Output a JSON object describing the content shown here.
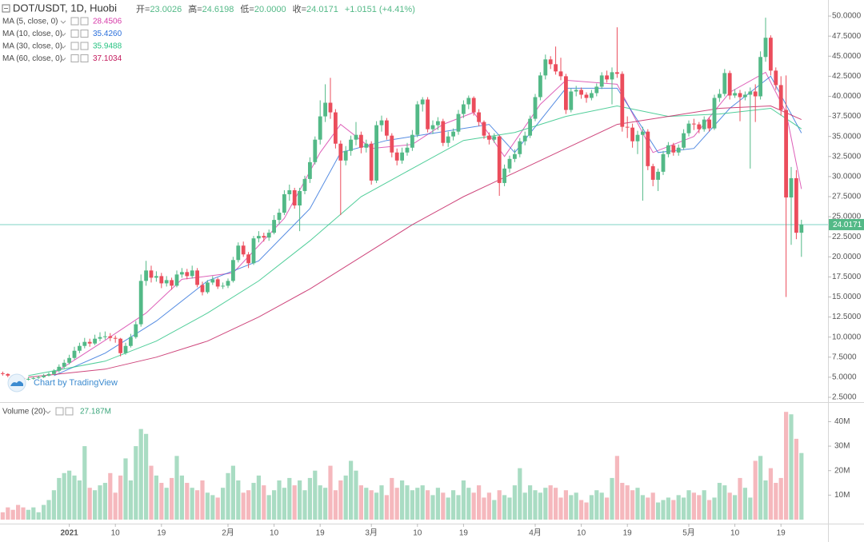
{
  "chart_data": {
    "type": "candlestick",
    "title": "DOT/USDT, 1D, Huobi",
    "header_values": [
      {
        "label": "开=",
        "value": "23.0026"
      },
      {
        "label": "高=",
        "value": "24.6198"
      },
      {
        "label": "低=",
        "value": "20.0000"
      },
      {
        "label": "收=",
        "value": "24.0171"
      },
      {
        "label": "",
        "value": "+1.0151 (+4.41%)"
      }
    ],
    "up_color": "#53b987",
    "down_color": "#eb4d5c",
    "ylim": [
      2,
      52
    ],
    "yticks": [
      {
        "value": 2.5,
        "label": "2.5000"
      },
      {
        "value": 5,
        "label": "5.0000"
      },
      {
        "value": 7.5,
        "label": "7.5000"
      },
      {
        "value": 10,
        "label": "10.0000"
      },
      {
        "value": 12.5,
        "label": "12.5000"
      },
      {
        "value": 15,
        "label": "15.0000"
      },
      {
        "value": 17.5,
        "label": "17.5000"
      },
      {
        "value": 20,
        "label": "20.0000"
      },
      {
        "value": 22.5,
        "label": "22.5000"
      },
      {
        "value": 25,
        "label": "25.0000"
      },
      {
        "value": 27.5,
        "label": "27.5000"
      },
      {
        "value": 30,
        "label": "30.0000"
      },
      {
        "value": 32.5,
        "label": "32.5000"
      },
      {
        "value": 35,
        "label": "35.0000"
      },
      {
        "value": 37.5,
        "label": "37.5000"
      },
      {
        "value": 40,
        "label": "40.0000"
      },
      {
        "value": 42.5,
        "label": "42.5000"
      },
      {
        "value": 45,
        "label": "45.0000"
      },
      {
        "value": 47.5,
        "label": "47.5000"
      },
      {
        "value": 50,
        "label": "50.0000"
      }
    ],
    "ohlc": [
      [
        5.5,
        5.7,
        5.2,
        5.4
      ],
      [
        5.4,
        5.5,
        5.0,
        5.2
      ],
      [
        5.2,
        5.3,
        4.8,
        5.0
      ],
      [
        5.0,
        5.1,
        4.7,
        4.9
      ],
      [
        4.9,
        5.0,
        4.6,
        4.8
      ],
      [
        4.8,
        5.0,
        4.6,
        4.8
      ],
      [
        4.8,
        5.1,
        4.7,
        4.9
      ],
      [
        4.9,
        5.2,
        4.8,
        5.0
      ],
      [
        5.0,
        5.4,
        4.9,
        5.2
      ],
      [
        5.2,
        5.6,
        5.1,
        5.4
      ],
      [
        5.4,
        6.0,
        5.3,
        5.8
      ],
      [
        5.8,
        6.6,
        5.6,
        6.3
      ],
      [
        6.3,
        7.2,
        6.1,
        6.8
      ],
      [
        6.8,
        7.8,
        6.6,
        7.4
      ],
      [
        7.4,
        8.8,
        7.2,
        8.3
      ],
      [
        8.3,
        9.3,
        8.0,
        8.9
      ],
      [
        8.9,
        9.9,
        8.6,
        9.4
      ],
      [
        9.4,
        9.8,
        8.8,
        9.2
      ],
      [
        9.2,
        10.3,
        9.0,
        9.8
      ],
      [
        9.8,
        10.6,
        9.5,
        10.0
      ],
      [
        10.0,
        10.7,
        9.7,
        10.1
      ],
      [
        10.1,
        10.5,
        9.5,
        9.9
      ],
      [
        9.9,
        10.2,
        9.3,
        9.8
      ],
      [
        9.8,
        9.9,
        7.6,
        8.0
      ],
      [
        8.0,
        9.3,
        7.8,
        8.9
      ],
      [
        8.9,
        10.4,
        8.7,
        10.0
      ],
      [
        10.0,
        12.0,
        9.8,
        11.6
      ],
      [
        11.6,
        17.8,
        11.3,
        17.0
      ],
      [
        17.0,
        19.5,
        16.4,
        18.3
      ],
      [
        18.3,
        18.9,
        16.8,
        17.4
      ],
      [
        17.4,
        18.2,
        16.9,
        17.6
      ],
      [
        17.6,
        18.0,
        16.1,
        16.7
      ],
      [
        16.7,
        17.6,
        16.3,
        17.1
      ],
      [
        17.1,
        17.4,
        15.9,
        16.4
      ],
      [
        16.4,
        18.3,
        16.2,
        17.8
      ],
      [
        17.8,
        18.6,
        17.4,
        18.1
      ],
      [
        18.1,
        18.5,
        17.2,
        17.6
      ],
      [
        17.6,
        18.9,
        17.3,
        18.3
      ],
      [
        18.3,
        18.6,
        16.2,
        16.5
      ],
      [
        16.5,
        16.9,
        15.2,
        15.6
      ],
      [
        15.6,
        17.1,
        15.4,
        16.8
      ],
      [
        16.8,
        17.6,
        16.5,
        17.2
      ],
      [
        17.2,
        17.4,
        16.0,
        16.3
      ],
      [
        16.3,
        16.8,
        16.0,
        16.4
      ],
      [
        16.4,
        17.3,
        16.1,
        17.0
      ],
      [
        17.0,
        20.0,
        16.8,
        19.6
      ],
      [
        19.6,
        21.8,
        19.3,
        21.4
      ],
      [
        21.4,
        21.9,
        20.0,
        20.3
      ],
      [
        20.3,
        20.6,
        18.6,
        19.2
      ],
      [
        19.2,
        22.6,
        19.0,
        22.3
      ],
      [
        22.3,
        23.2,
        21.8,
        22.6
      ],
      [
        22.6,
        23.0,
        21.9,
        22.4
      ],
      [
        22.4,
        23.4,
        22.0,
        23.0
      ],
      [
        23.0,
        25.2,
        22.8,
        24.6
      ],
      [
        24.6,
        26.0,
        24.1,
        25.5
      ],
      [
        25.5,
        28.3,
        25.2,
        27.8
      ],
      [
        27.8,
        29.0,
        27.0,
        28.3
      ],
      [
        28.3,
        28.6,
        26.0,
        26.4
      ],
      [
        26.4,
        28.6,
        23.2,
        28.2
      ],
      [
        28.2,
        30.1,
        27.8,
        29.7
      ],
      [
        29.7,
        32.4,
        29.2,
        31.8
      ],
      [
        31.8,
        35.0,
        31.5,
        34.6
      ],
      [
        34.6,
        39.5,
        34.0,
        37.5
      ],
      [
        37.5,
        41.5,
        36.8,
        39.2
      ],
      [
        39.2,
        42.3,
        37.2,
        38.0
      ],
      [
        38.0,
        38.4,
        33.5,
        34.1
      ],
      [
        34.1,
        34.5,
        25.2,
        32.0
      ],
      [
        32.0,
        33.8,
        31.4,
        33.2
      ],
      [
        33.2,
        35.1,
        32.6,
        34.6
      ],
      [
        34.6,
        36.8,
        33.9,
        35.2
      ],
      [
        35.2,
        35.6,
        32.9,
        33.6
      ],
      [
        33.6,
        34.6,
        33.0,
        34.1
      ],
      [
        34.1,
        34.4,
        29.0,
        29.5
      ],
      [
        29.5,
        36.9,
        29.2,
        36.4
      ],
      [
        36.4,
        37.6,
        35.6,
        37.0
      ],
      [
        37.0,
        37.3,
        34.6,
        35.1
      ],
      [
        35.1,
        35.4,
        32.4,
        33.0
      ],
      [
        33.0,
        33.5,
        31.4,
        32.0
      ],
      [
        32.0,
        33.6,
        31.6,
        33.0
      ],
      [
        33.0,
        34.2,
        32.6,
        33.6
      ],
      [
        33.6,
        35.8,
        33.2,
        35.2
      ],
      [
        35.2,
        39.4,
        34.9,
        39.0
      ],
      [
        39.0,
        39.9,
        38.1,
        39.6
      ],
      [
        39.6,
        39.9,
        35.5,
        35.9
      ],
      [
        35.9,
        37.0,
        35.3,
        36.4
      ],
      [
        36.4,
        37.4,
        35.8,
        36.9
      ],
      [
        36.9,
        37.2,
        33.8,
        34.2
      ],
      [
        34.2,
        35.6,
        33.7,
        35.0
      ],
      [
        35.0,
        36.0,
        34.5,
        35.6
      ],
      [
        35.6,
        38.3,
        35.2,
        37.8
      ],
      [
        37.8,
        39.5,
        37.3,
        39.0
      ],
      [
        39.0,
        40.1,
        38.4,
        39.8
      ],
      [
        39.8,
        40.0,
        37.6,
        38.0
      ],
      [
        38.0,
        38.4,
        36.3,
        36.8
      ],
      [
        36.8,
        37.0,
        34.7,
        35.1
      ],
      [
        35.1,
        35.5,
        34.0,
        34.6
      ],
      [
        34.6,
        35.4,
        34.2,
        35.0
      ],
      [
        35.0,
        35.2,
        27.6,
        29.2
      ],
      [
        29.2,
        31.5,
        28.8,
        31.0
      ],
      [
        31.0,
        32.6,
        30.5,
        32.2
      ],
      [
        32.2,
        33.4,
        31.8,
        32.8
      ],
      [
        32.8,
        34.8,
        32.4,
        34.4
      ],
      [
        34.4,
        35.6,
        33.9,
        35.1
      ],
      [
        35.1,
        37.6,
        34.8,
        37.2
      ],
      [
        37.2,
        40.3,
        36.9,
        39.9
      ],
      [
        39.9,
        43.0,
        39.5,
        42.6
      ],
      [
        42.6,
        45.2,
        42.1,
        44.6
      ],
      [
        44.6,
        45.0,
        43.4,
        44.0
      ],
      [
        44.0,
        46.2,
        42.7,
        43.1
      ],
      [
        43.1,
        44.8,
        42.0,
        42.5
      ],
      [
        42.5,
        42.8,
        37.8,
        38.3
      ],
      [
        38.3,
        41.0,
        38.0,
        40.6
      ],
      [
        40.6,
        41.3,
        40.0,
        40.8
      ],
      [
        40.8,
        41.1,
        39.7,
        40.2
      ],
      [
        40.2,
        40.5,
        39.2,
        39.8
      ],
      [
        39.8,
        40.8,
        39.5,
        40.4
      ],
      [
        40.4,
        41.6,
        40.0,
        41.2
      ],
      [
        41.2,
        43.0,
        40.9,
        42.6
      ],
      [
        42.6,
        43.2,
        41.7,
        42.1
      ],
      [
        42.1,
        43.6,
        39.0,
        43.0
      ],
      [
        43.0,
        48.6,
        42.3,
        42.8
      ],
      [
        42.8,
        43.1,
        35.6,
        36.2
      ],
      [
        36.2,
        37.5,
        34.8,
        36.1
      ],
      [
        36.1,
        36.6,
        33.6,
        34.4
      ],
      [
        34.4,
        35.7,
        32.8,
        35.2
      ],
      [
        35.2,
        36.2,
        27.0,
        35.6
      ],
      [
        35.6,
        35.9,
        30.8,
        31.3
      ],
      [
        31.3,
        31.6,
        28.8,
        29.6
      ],
      [
        29.6,
        31.0,
        28.2,
        30.6
      ],
      [
        30.6,
        33.2,
        30.2,
        32.8
      ],
      [
        32.8,
        34.3,
        32.4,
        33.9
      ],
      [
        33.9,
        34.2,
        32.6,
        33.0
      ],
      [
        33.0,
        34.0,
        32.6,
        33.6
      ],
      [
        33.6,
        35.9,
        33.3,
        35.4
      ],
      [
        35.4,
        37.0,
        35.0,
        36.6
      ],
      [
        36.6,
        37.2,
        35.8,
        36.5
      ],
      [
        36.5,
        36.8,
        35.4,
        35.9
      ],
      [
        35.9,
        37.5,
        35.6,
        37.1
      ],
      [
        37.1,
        37.4,
        35.6,
        36.0
      ],
      [
        36.0,
        40.2,
        35.8,
        39.8
      ],
      [
        39.8,
        40.9,
        39.3,
        40.3
      ],
      [
        40.3,
        43.4,
        40.0,
        42.9
      ],
      [
        42.9,
        43.2,
        39.6,
        40.1
      ],
      [
        40.1,
        40.9,
        39.8,
        40.4
      ],
      [
        40.4,
        40.8,
        36.9,
        39.9
      ],
      [
        39.9,
        40.6,
        39.5,
        40.2
      ],
      [
        40.2,
        41.1,
        31.0,
        40.6
      ],
      [
        40.6,
        41.5,
        36.8,
        40.0
      ],
      [
        40.0,
        45.6,
        39.6,
        44.9
      ],
      [
        44.9,
        49.8,
        44.3,
        47.3
      ],
      [
        47.3,
        47.6,
        42.6,
        43.2
      ],
      [
        43.2,
        43.6,
        40.8,
        41.4
      ],
      [
        41.4,
        42.5,
        37.6,
        38.3
      ],
      [
        38.3,
        42.6,
        15.0,
        27.4
      ],
      [
        27.4,
        31.2,
        21.5,
        29.8
      ],
      [
        29.8,
        30.8,
        22.2,
        23.0
      ],
      [
        23.0026,
        24.6198,
        20.0,
        24.0171
      ]
    ],
    "moving_averages": [
      {
        "name": "MA (5, close, 0)",
        "color": "#d63aa8",
        "value_label": "28.4506",
        "x": [
          10,
          20,
          28,
          35,
          45,
          55,
          62,
          66,
          72,
          80,
          86,
          92,
          98,
          105,
          110,
          120,
          127,
          135,
          142,
          149,
          153,
          156
        ],
        "values": [
          5.5,
          9.6,
          13,
          17.2,
          18,
          24.8,
          33,
          36.5,
          33.5,
          34,
          36.5,
          38,
          32.5,
          39,
          42,
          41.5,
          33,
          35,
          40.5,
          43,
          38,
          28.4506
        ]
      },
      {
        "name": "MA (10, close, 0)",
        "color": "#2a6fdb",
        "value_label": "35.4260",
        "x": [
          10,
          20,
          30,
          40,
          50,
          60,
          66,
          75,
          85,
          95,
          100,
          110,
          120,
          128,
          135,
          142,
          150,
          156
        ],
        "values": [
          5.2,
          8,
          12,
          17,
          19.5,
          26,
          33,
          34.5,
          35.5,
          36.5,
          33,
          41,
          41,
          33,
          33.5,
          38.5,
          42.5,
          35.426
        ]
      },
      {
        "name": "MA (30, close, 0)",
        "color": "#26c281",
        "value_label": "35.9488",
        "x": [
          5,
          20,
          30,
          40,
          50,
          60,
          70,
          80,
          90,
          100,
          110,
          120,
          130,
          140,
          150,
          156
        ],
        "values": [
          5.2,
          7,
          9.5,
          13,
          17,
          22,
          27.5,
          31,
          34.5,
          35.5,
          37.5,
          38.8,
          37.5,
          37.8,
          38.5,
          35.9488
        ]
      },
      {
        "name": "MA (60, close, 0)",
        "color": "#c2185b",
        "value_label": "37.1034",
        "x": [
          5,
          20,
          30,
          40,
          50,
          60,
          70,
          80,
          90,
          100,
          110,
          120,
          130,
          140,
          150,
          156
        ],
        "values": [
          5,
          6,
          7.5,
          9.5,
          12.5,
          16,
          20,
          24,
          27.5,
          30.5,
          33.5,
          36.5,
          37.5,
          38.5,
          38.8,
          37.1034
        ]
      }
    ],
    "volume": {
      "name": "Volume (20)",
      "value_label": "27.187M",
      "ylim": [
        0,
        47
      ],
      "yticks": [
        {
          "value": 10,
          "label": "10M"
        },
        {
          "value": 20,
          "label": "20M"
        },
        {
          "value": 30,
          "label": "30M"
        },
        {
          "value": 40,
          "label": "40M"
        }
      ],
      "up_color": "#a9dcc3",
      "down_color": "#f5b8bd",
      "values": [
        3,
        5,
        4,
        6,
        5,
        4,
        5,
        3,
        6,
        8,
        12,
        17,
        19,
        20,
        18,
        16,
        30,
        13,
        12,
        14,
        15,
        19,
        11,
        18,
        25,
        16,
        30,
        37,
        35,
        22,
        18,
        15,
        13,
        17,
        26,
        18,
        15,
        13,
        12,
        16,
        11,
        10,
        9,
        13,
        19,
        22,
        16,
        11,
        12,
        15,
        18,
        14,
        10,
        12,
        16,
        13,
        17,
        14,
        16,
        12,
        17,
        20,
        14,
        13,
        22,
        12,
        16,
        18,
        24,
        20,
        14,
        13,
        12,
        11,
        14,
        10,
        17,
        13,
        16,
        14,
        12,
        13,
        14,
        12,
        10,
        13,
        11,
        9,
        12,
        10,
        16,
        13,
        11,
        14,
        9,
        11,
        8,
        12,
        10,
        9,
        14,
        21,
        11,
        14,
        12,
        11,
        13,
        14,
        13,
        9,
        12,
        10,
        11,
        8,
        7,
        10,
        12,
        11,
        9,
        17,
        26,
        15,
        14,
        12,
        13,
        10,
        9,
        11,
        7,
        8,
        9,
        8,
        10,
        9,
        12,
        11,
        10,
        12,
        8,
        9,
        15,
        14,
        11,
        10,
        17,
        13,
        9,
        24,
        26,
        16,
        21,
        15,
        17,
        44,
        43,
        33,
        27.187
      ]
    },
    "x_labels": [
      {
        "index": 13,
        "label": "2021"
      },
      {
        "index": 22,
        "label": "10"
      },
      {
        "index": 31,
        "label": "19"
      },
      {
        "index": 44,
        "label": "2月"
      },
      {
        "index": 53,
        "label": "10"
      },
      {
        "index": 62,
        "label": "19"
      },
      {
        "index": 72,
        "label": "3月"
      },
      {
        "index": 81,
        "label": "10"
      },
      {
        "index": 90,
        "label": "19"
      },
      {
        "index": 104,
        "label": "4月"
      },
      {
        "index": 113,
        "label": "10"
      },
      {
        "index": 122,
        "label": "19"
      },
      {
        "index": 134,
        "label": "5月"
      },
      {
        "index": 143,
        "label": "10"
      },
      {
        "index": 152,
        "label": "19"
      }
    ],
    "watermark": "Chart by TradingView",
    "grid": false
  }
}
